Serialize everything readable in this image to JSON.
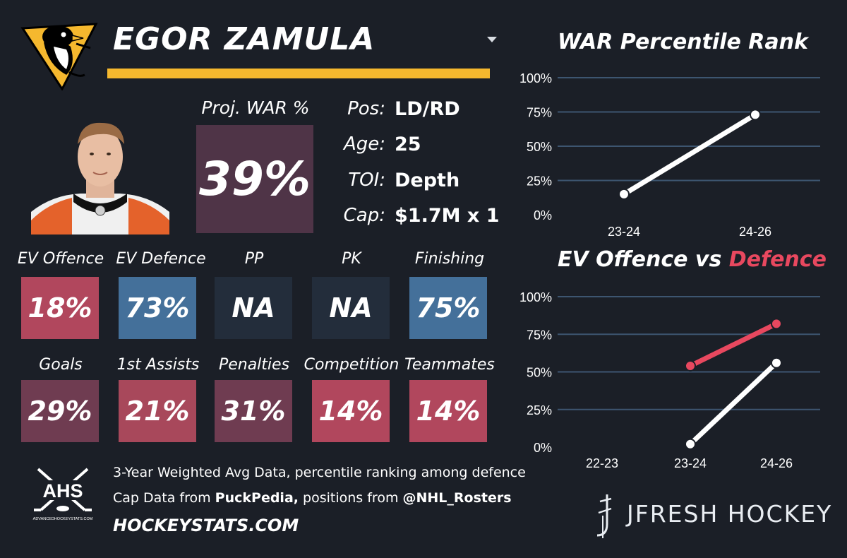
{
  "player": {
    "name": "EGOR ZAMULA",
    "proj_war_label": "Proj. WAR %",
    "proj_war_value": "39%",
    "info": [
      {
        "label": "Pos:",
        "value": "LD/RD"
      },
      {
        "label": "Age:",
        "value": "25"
      },
      {
        "label": "TOI:",
        "value": "Depth"
      },
      {
        "label": "Cap:",
        "value": "$1.7M x 1"
      }
    ]
  },
  "tiles_row1": [
    {
      "label": "EV Offence",
      "value": "18%",
      "color": "#b1475d"
    },
    {
      "label": "EV Defence",
      "value": "73%",
      "color": "#44709a"
    },
    {
      "label": "PP",
      "value": "NA",
      "color": "#232d3b"
    },
    {
      "label": "PK",
      "value": "NA",
      "color": "#232d3b"
    },
    {
      "label": "Finishing",
      "value": "75%",
      "color": "#44709a"
    }
  ],
  "tiles_row2": [
    {
      "label": "Goals",
      "value": "29%",
      "color": "#6f3c51"
    },
    {
      "label": "1st Assists",
      "value": "21%",
      "color": "#a8485b"
    },
    {
      "label": "Penalties",
      "value": "31%",
      "color": "#6f3c51"
    },
    {
      "label": "Competition",
      "value": "14%",
      "color": "#b1475d"
    },
    {
      "label": "Teammates",
      "value": "14%",
      "color": "#b1475d"
    }
  ],
  "footer": {
    "line1": "3-Year Weighted Avg Data, percentile ranking among defence",
    "line2_pre": "Cap Data from ",
    "line2_b1": "PuckPedia,",
    "line2_mid": " positions from ",
    "line2_b2": "@NHL_Rosters",
    "site": "HOCKEYSTATS.COM",
    "ahs_text": "AHS",
    "ahs_small": "ADVANCEDHOCKEYSTATS.COM",
    "brand": "JFRESH HOCKEY"
  },
  "colors": {
    "accent_yellow": "#f5b82e",
    "offence_line": "#ffffff",
    "defence_line": "#e8485f",
    "grid": "#3d5570"
  },
  "chart_data": [
    {
      "type": "line",
      "title": "WAR Percentile Rank",
      "categories": [
        "23-24",
        "24-26"
      ],
      "series": [
        {
          "values": [
            15,
            73
          ]
        }
      ],
      "ylim": [
        0,
        100
      ],
      "yticks": [
        "100%",
        "75%",
        "50%",
        "25%",
        "0%"
      ],
      "grid": true
    },
    {
      "type": "line",
      "title_part1": "EV Offence vs ",
      "title_part2": "Defence",
      "categories": [
        "22-23",
        "23-24",
        "24-26"
      ],
      "series": [
        {
          "values": [
            null,
            2,
            56
          ]
        },
        {
          "values": [
            null,
            54,
            82
          ]
        }
      ],
      "ylim": [
        0,
        100
      ],
      "yticks": [
        "100%",
        "75%",
        "50%",
        "25%",
        "0%"
      ],
      "grid": true
    }
  ]
}
